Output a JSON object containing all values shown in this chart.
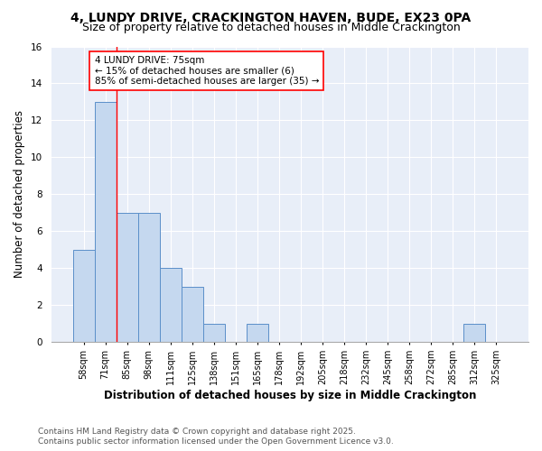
{
  "title1": "4, LUNDY DRIVE, CRACKINGTON HAVEN, BUDE, EX23 0PA",
  "title2": "Size of property relative to detached houses in Middle Crackington",
  "xlabel": "Distribution of detached houses by size in Middle Crackington",
  "ylabel": "Number of detached properties",
  "categories": [
    "58sqm",
    "71sqm",
    "85sqm",
    "98sqm",
    "111sqm",
    "125sqm",
    "138sqm",
    "151sqm",
    "165sqm",
    "178sqm",
    "192sqm",
    "205sqm",
    "218sqm",
    "232sqm",
    "245sqm",
    "258sqm",
    "272sqm",
    "285sqm",
    "312sqm",
    "325sqm"
  ],
  "values": [
    5,
    13,
    7,
    7,
    4,
    3,
    1,
    0,
    1,
    0,
    0,
    0,
    0,
    0,
    0,
    0,
    0,
    0,
    1,
    0
  ],
  "bar_color": "#C5D8EF",
  "bar_edge_color": "#5B8FC9",
  "bar_edge_width": 0.7,
  "red_line_x": 1.5,
  "annotation_text": "4 LUNDY DRIVE: 75sqm\n← 15% of detached houses are smaller (6)\n85% of semi-detached houses are larger (35) →",
  "ylim": [
    0,
    16
  ],
  "yticks": [
    0,
    2,
    4,
    6,
    8,
    10,
    12,
    14,
    16
  ],
  "background_color": "#E8EEF8",
  "grid_color": "#FFFFFF",
  "footer1": "Contains HM Land Registry data © Crown copyright and database right 2025.",
  "footer2": "Contains public sector information licensed under the Open Government Licence v3.0.",
  "title_fontsize": 10,
  "subtitle_fontsize": 9,
  "xlabel_fontsize": 8.5,
  "ylabel_fontsize": 8.5,
  "tick_fontsize": 7,
  "annotation_fontsize": 7.5,
  "footer_fontsize": 6.5
}
